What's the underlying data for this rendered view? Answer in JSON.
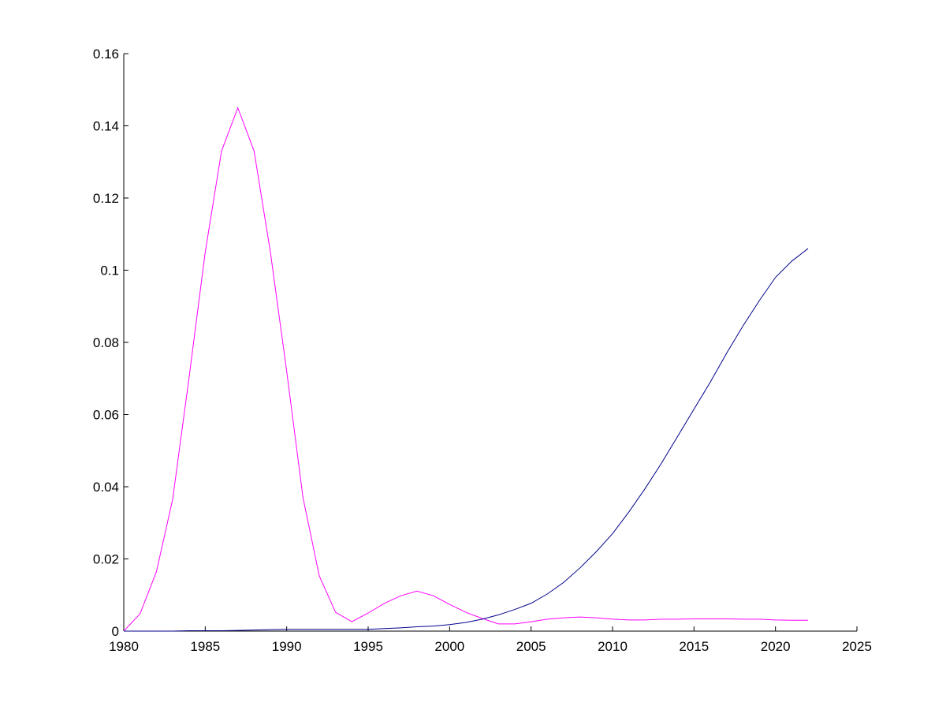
{
  "chart_data": {
    "type": "line",
    "x": [
      1980,
      1981,
      1982,
      1983,
      1984,
      1985,
      1986,
      1987,
      1988,
      1989,
      1990,
      1991,
      1992,
      1993,
      1994,
      1995,
      1996,
      1997,
      1998,
      1999,
      2000,
      2001,
      2002,
      2003,
      2004,
      2005,
      2006,
      2007,
      2008,
      2009,
      2010,
      2011,
      2012,
      2013,
      2014,
      2015,
      2016,
      2017,
      2018,
      2019,
      2020,
      2021,
      2022
    ],
    "series": [
      {
        "color": "#ff00ff",
        "values": [
          0,
          0.0048,
          0.0164,
          0.0365,
          0.07,
          0.105,
          0.133,
          0.145,
          0.133,
          0.105,
          0.072,
          0.037,
          0.0153,
          0.0052,
          0.0026,
          0.005,
          0.0077,
          0.0098,
          0.0111,
          0.0098,
          0.0074,
          0.0052,
          0.0035,
          0.002,
          0.002,
          0.0026,
          0.0033,
          0.0037,
          0.0039,
          0.0037,
          0.0033,
          0.0031,
          0.0031,
          0.0033,
          0.0033,
          0.0034,
          0.0034,
          0.0034,
          0.0033,
          0.0033,
          0.0031,
          0.003,
          0.003
        ]
      },
      {
        "color": "#00008b",
        "values": [
          0,
          0,
          0,
          0,
          0.0001,
          0.0001,
          0.0001,
          0.0002,
          0.0003,
          0.0004,
          0.0005,
          0.0005,
          0.0005,
          0.0005,
          0.0005,
          0.0005,
          0.0007,
          0.0009,
          0.0012,
          0.0014,
          0.0018,
          0.0024,
          0.0033,
          0.0045,
          0.006,
          0.0077,
          0.0103,
          0.0135,
          0.0175,
          0.022,
          0.027,
          0.033,
          0.0395,
          0.0465,
          0.054,
          0.0615,
          0.069,
          0.077,
          0.0845,
          0.0915,
          0.098,
          0.1025,
          0.106
        ]
      }
    ],
    "xlim": [
      1980,
      2025
    ],
    "xticks": [
      1980,
      1985,
      1990,
      1995,
      2000,
      2005,
      2010,
      2015,
      2020,
      2025
    ],
    "ylim": [
      0,
      0.16
    ],
    "yticks": [
      0,
      0.02,
      0.04,
      0.06,
      0.08,
      0.1,
      0.12,
      0.14,
      0.16
    ]
  }
}
